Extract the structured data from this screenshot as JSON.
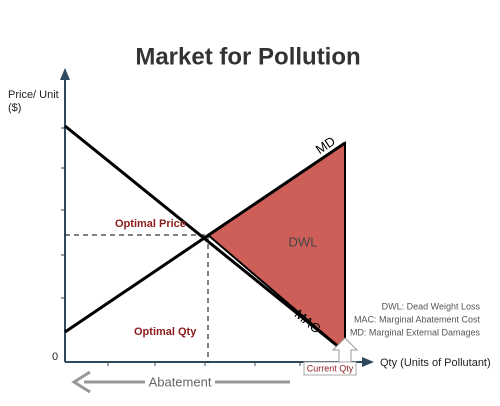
{
  "title": "Market for Pollution",
  "axes": {
    "y_label": [
      "Price/ Unit",
      "($)"
    ],
    "origin": "0",
    "x_label": "Qty (Units of Pollutant)"
  },
  "curves": {
    "md": "MD",
    "mac": "MAC"
  },
  "region": "DWL",
  "annotations": {
    "optimal_price": "Optimal Price",
    "optimal_qty": "Optimal Qty",
    "current_qty": "Current Qty",
    "abatement": "Abatement"
  },
  "legend": [
    "DWL: Dead Weight Loss",
    "MAC: Marginal Abatement Cost",
    "MD: Marginal External Damages"
  ]
}
